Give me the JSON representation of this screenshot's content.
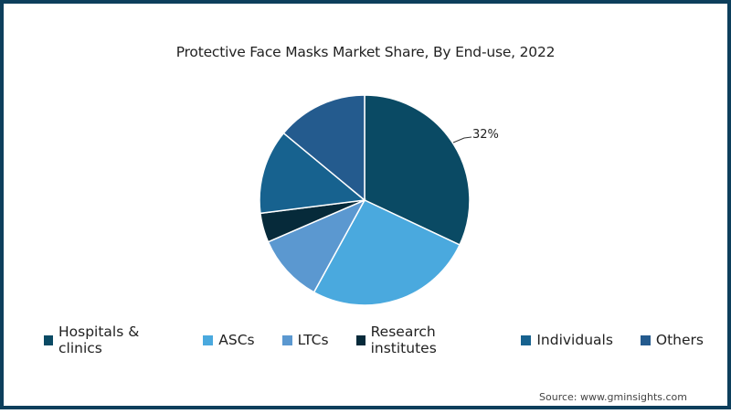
{
  "chart_data": {
    "type": "pie",
    "title": "Protective Face Masks Market Share, By End-use, 2022",
    "categories": [
      "Hospitals & clinics",
      "ASCs",
      "LTCs",
      "Research institutes",
      "Individuals",
      "Others"
    ],
    "values": [
      32,
      26,
      10.5,
      4.5,
      13,
      14
    ],
    "colors": [
      "#0a4a64",
      "#4aa9de",
      "#5b98d0",
      "#062a3a",
      "#17628f",
      "#245b8e"
    ],
    "annotations": [
      {
        "category": "Hospitals & clinics",
        "label": "32%"
      }
    ],
    "legend_position": "bottom",
    "start_angle_deg": 0,
    "direction": "clockwise"
  },
  "title": "Protective Face Masks Market Share, By End-use, 2022",
  "legend": [
    {
      "label": "Hospitals & clinics",
      "color": "#0a4a64"
    },
    {
      "label": "ASCs",
      "color": "#4aa9de"
    },
    {
      "label": "LTCs",
      "color": "#5b98d0"
    },
    {
      "label": "Research institutes",
      "color": "#062a3a"
    },
    {
      "label": "Individuals",
      "color": "#17628f"
    },
    {
      "label": "Others",
      "color": "#245b8e"
    }
  ],
  "data_label": "32%",
  "source": "Source: www.gminsights.com",
  "frame_color": "#0d3f5c"
}
